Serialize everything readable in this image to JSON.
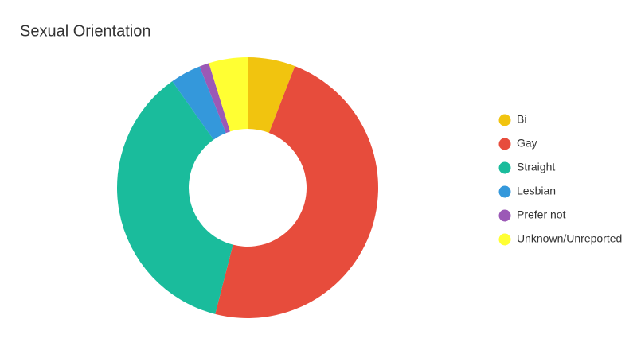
{
  "chart_data": {
    "type": "donut",
    "title": "Sexual Orientation",
    "categories": [
      "Bi",
      "Gay",
      "Straight",
      "Lesbian",
      "Prefer not",
      "Unknown/Unreported"
    ],
    "values": [
      5.9,
      48.1,
      36.2,
      3.8,
      1.2,
      4.8
    ],
    "colors": [
      "#f1c40f",
      "#e74c3c",
      "#1abc9c",
      "#3498db",
      "#9b59b6",
      "#ffff33"
    ],
    "legend": "right"
  }
}
